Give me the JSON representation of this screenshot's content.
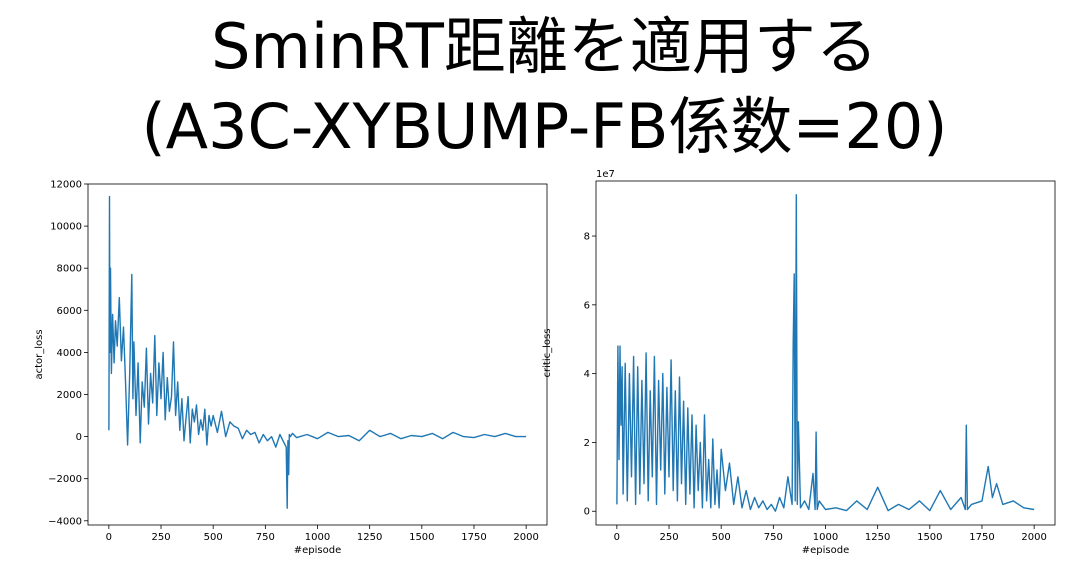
{
  "title": {
    "line1": "SminRT距離を適用する",
    "line2": "(A3C-XYBUMP-FB係数=20)"
  },
  "colors": {
    "series": "#1f77b4",
    "axes": "#000000"
  },
  "chart_data": [
    {
      "type": "line",
      "xlabel": "#episode",
      "ylabel": "actor_loss",
      "xlim": [
        -100,
        2100
      ],
      "ylim": [
        -4200,
        12000
      ],
      "xticks": [
        0,
        250,
        500,
        750,
        1000,
        1250,
        1500,
        1750,
        2000
      ],
      "yticks": [
        -4000,
        -2000,
        0,
        2000,
        4000,
        6000,
        8000,
        10000,
        12000
      ],
      "ytick_labels": [
        "−4000",
        "−2000",
        "0",
        "2000",
        "4000",
        "6000",
        "8000",
        "10000",
        "12000"
      ],
      "offset_text": "",
      "grid": false,
      "series": [
        {
          "x": [
            0,
            3,
            5,
            8,
            12,
            18,
            25,
            32,
            40,
            50,
            60,
            70,
            80,
            90,
            100,
            110,
            115,
            120,
            130,
            140,
            150,
            160,
            170,
            180,
            190,
            200,
            210,
            220,
            230,
            240,
            250,
            260,
            270,
            280,
            290,
            300,
            310,
            320,
            330,
            340,
            350,
            360,
            370,
            380,
            390,
            400,
            410,
            420,
            430,
            440,
            450,
            460,
            470,
            480,
            490,
            500,
            520,
            540,
            560,
            580,
            600,
            620,
            640,
            660,
            680,
            700,
            720,
            740,
            760,
            780,
            800,
            820,
            840,
            850,
            855,
            858,
            862,
            865,
            870,
            880,
            900,
            950,
            1000,
            1050,
            1100,
            1150,
            1200,
            1250,
            1300,
            1350,
            1400,
            1450,
            1500,
            1550,
            1600,
            1650,
            1700,
            1750,
            1800,
            1850,
            1900,
            1950,
            2000
          ],
          "y": [
            300,
            11400,
            4000,
            8000,
            3000,
            5800,
            3500,
            5500,
            4300,
            6600,
            3600,
            5200,
            2500,
            -400,
            3000,
            7700,
            1800,
            4500,
            1000,
            3500,
            -300,
            2600,
            1400,
            4200,
            600,
            3000,
            1600,
            4800,
            1000,
            3500,
            1800,
            4000,
            800,
            2800,
            1200,
            1900,
            4500,
            1000,
            2600,
            300,
            1800,
            -200,
            900,
            1900,
            -300,
            1300,
            700,
            1500,
            100,
            800,
            300,
            1300,
            -400,
            1000,
            500,
            1000,
            200,
            1200,
            0,
            700,
            500,
            400,
            -100,
            300,
            100,
            200,
            -300,
            100,
            -200,
            0,
            -500,
            100,
            -300,
            -500,
            -3400,
            -200,
            -1800,
            100,
            0,
            150,
            -50,
            100,
            -100,
            200,
            0,
            50,
            -200,
            300,
            0,
            150,
            -100,
            50,
            0,
            150,
            -100,
            200,
            0,
            -50,
            100,
            0,
            150,
            0,
            0
          ]
        }
      ]
    },
    {
      "type": "line",
      "xlabel": "#episode",
      "ylabel": "critic_loss",
      "xlim": [
        -100,
        2100
      ],
      "ylim": [
        -0.4,
        9.6
      ],
      "xticks": [
        0,
        250,
        500,
        750,
        1000,
        1250,
        1500,
        1750,
        2000
      ],
      "yticks": [
        0,
        2,
        4,
        6,
        8
      ],
      "ytick_labels": [
        "0",
        "2",
        "4",
        "6",
        "8"
      ],
      "offset_text": "1e7",
      "grid": false,
      "series": [
        {
          "x": [
            0,
            5,
            10,
            15,
            20,
            25,
            30,
            40,
            50,
            60,
            70,
            80,
            90,
            100,
            110,
            120,
            130,
            140,
            150,
            160,
            170,
            180,
            190,
            200,
            210,
            220,
            230,
            240,
            250,
            260,
            270,
            280,
            290,
            300,
            310,
            320,
            330,
            340,
            350,
            360,
            370,
            380,
            390,
            400,
            410,
            420,
            430,
            440,
            450,
            460,
            470,
            480,
            490,
            500,
            520,
            540,
            560,
            580,
            600,
            620,
            640,
            660,
            680,
            700,
            720,
            740,
            760,
            780,
            800,
            820,
            840,
            845,
            850,
            855,
            860,
            865,
            870,
            880,
            900,
            920,
            940,
            950,
            955,
            960,
            970,
            1000,
            1050,
            1100,
            1150,
            1200,
            1250,
            1300,
            1350,
            1400,
            1450,
            1500,
            1550,
            1600,
            1650,
            1670,
            1675,
            1680,
            1700,
            1750,
            1780,
            1800,
            1820,
            1850,
            1900,
            1950,
            2000
          ],
          "y": [
            0.2,
            4.8,
            1.5,
            4.8,
            2.5,
            4.2,
            0.5,
            4.3,
            0.3,
            4.0,
            1.0,
            4.5,
            0.2,
            4.2,
            0.5,
            3.8,
            0.8,
            4.6,
            0.3,
            3.5,
            1.0,
            4.5,
            0.2,
            3.8,
            1.2,
            4.0,
            0.5,
            3.6,
            1.0,
            4.4,
            0.6,
            3.5,
            0.3,
            3.9,
            0.8,
            3.2,
            0.2,
            3.0,
            0.5,
            2.8,
            0.1,
            2.5,
            0.6,
            2.0,
            0.1,
            2.8,
            0.3,
            1.5,
            0.1,
            2.1,
            0.2,
            1.2,
            0.1,
            1.8,
            0.6,
            1.4,
            0.2,
            1.0,
            0.1,
            0.6,
            0.05,
            0.4,
            0.1,
            0.3,
            0.05,
            0.2,
            0.0,
            0.4,
            0.1,
            1.0,
            0.2,
            4.9,
            6.9,
            0.3,
            9.2,
            0.2,
            2.6,
            0.1,
            0.3,
            0.05,
            1.1,
            0.05,
            2.3,
            0.05,
            0.3,
            0.05,
            0.1,
            0.02,
            0.3,
            0.05,
            0.7,
            0.02,
            0.2,
            0.05,
            0.3,
            0.02,
            0.6,
            0.05,
            0.4,
            0.05,
            2.5,
            0.05,
            0.2,
            0.3,
            1.3,
            0.4,
            0.8,
            0.2,
            0.3,
            0.1,
            0.05
          ]
        }
      ]
    }
  ]
}
